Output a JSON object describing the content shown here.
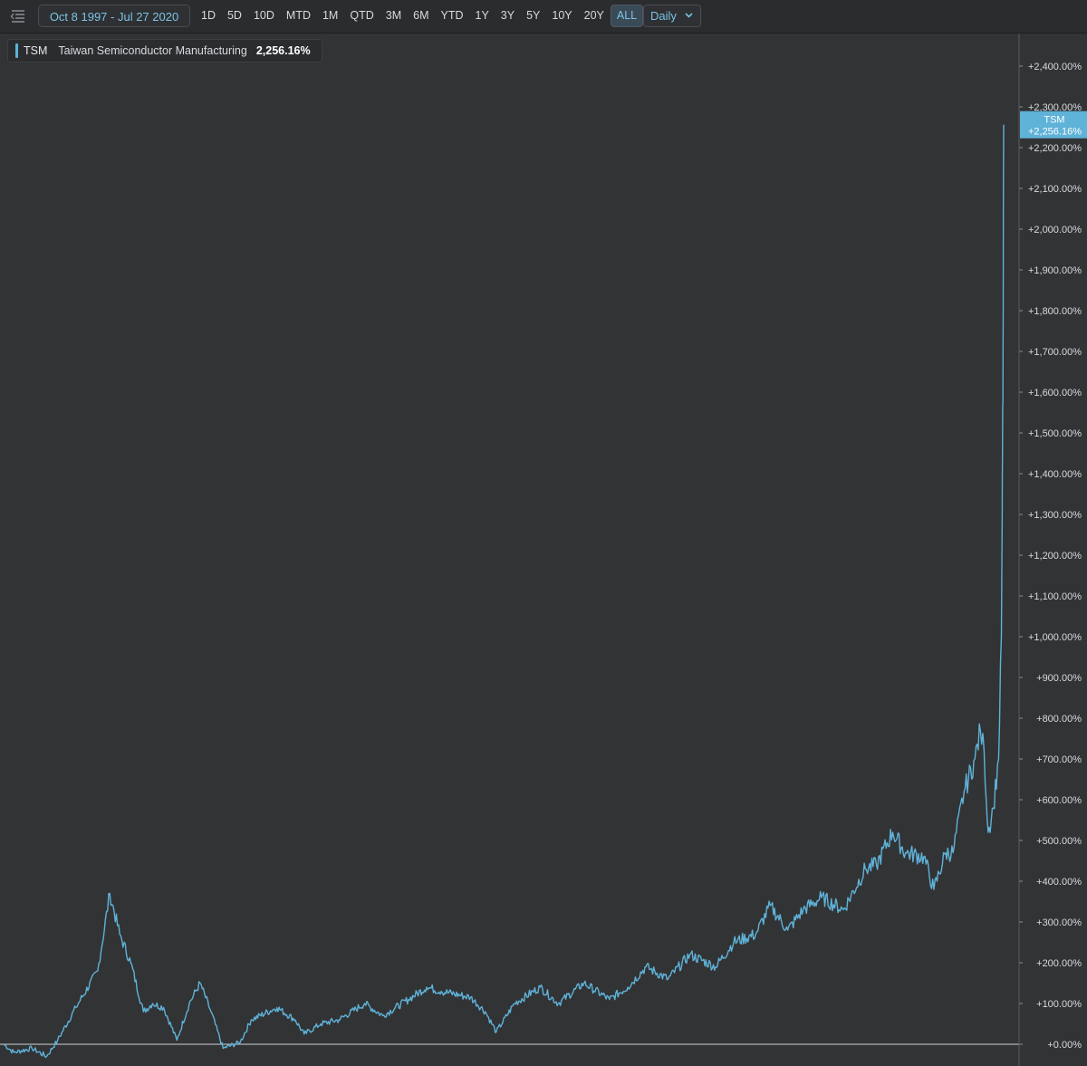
{
  "toolbar": {
    "date_range": "Oct 8 1997 - Jul 27 2020",
    "ranges": [
      "1D",
      "5D",
      "10D",
      "MTD",
      "1M",
      "QTD",
      "3M",
      "6M",
      "YTD",
      "1Y",
      "3Y",
      "5Y",
      "10Y",
      "20Y",
      "ALL"
    ],
    "active_range": "ALL",
    "interval": "Daily"
  },
  "legend": {
    "symbol": "TSM",
    "name": "Taiwan Semiconductor Manufacturing",
    "value": "2,256.16%"
  },
  "colors": {
    "line": "#5fb2d8",
    "background": "#323335",
    "tag": "#5fb2d8"
  },
  "chart_data": {
    "type": "line",
    "x_start": "1997-10-08",
    "x_end": "2020-07-27",
    "ylim": [
      0,
      2480
    ],
    "y_ticks": [
      0,
      100,
      200,
      300,
      400,
      500,
      600,
      700,
      800,
      900,
      1000,
      1100,
      1200,
      1300,
      1400,
      1500,
      1600,
      1700,
      1800,
      1900,
      2000,
      2100,
      2200,
      2300,
      2400
    ],
    "y_tick_labels": [
      "+0.00%",
      "+100.00%",
      "+200.00%",
      "+300.00%",
      "+400.00%",
      "+500.00%",
      "+600.00%",
      "+700.00%",
      "+800.00%",
      "+900.00%",
      "+1,000.00%",
      "+1,100.00%",
      "+1,200.00%",
      "+1,300.00%",
      "+1,400.00%",
      "+1,500.00%",
      "+1,600.00%",
      "+1,700.00%",
      "+1,800.00%",
      "+1,900.00%",
      "+2,000.00%",
      "+2,100.00%",
      "+2,200.00%",
      "+2,300.00%",
      "+2,400.00%"
    ],
    "series": [
      {
        "name": "TSM",
        "last_value": 2256.16,
        "last_label": "+2,256.16%",
        "points": [
          [
            "1997-10-08",
            0
          ],
          [
            "1998-01-01",
            -20
          ],
          [
            "1998-06-01",
            -10
          ],
          [
            "1998-10-01",
            -30
          ],
          [
            "1999-01-01",
            10
          ],
          [
            "1999-06-01",
            90
          ],
          [
            "1999-12-01",
            180
          ],
          [
            "2000-03-10",
            370
          ],
          [
            "2000-06-01",
            270
          ],
          [
            "2000-09-01",
            200
          ],
          [
            "2000-12-15",
            80
          ],
          [
            "2001-03-01",
            100
          ],
          [
            "2001-06-01",
            90
          ],
          [
            "2001-09-20",
            10
          ],
          [
            "2002-01-01",
            100
          ],
          [
            "2002-04-01",
            150
          ],
          [
            "2002-07-01",
            80
          ],
          [
            "2002-10-10",
            -10
          ],
          [
            "2003-03-01",
            5
          ],
          [
            "2003-06-01",
            60
          ],
          [
            "2004-01-01",
            90
          ],
          [
            "2004-06-01",
            60
          ],
          [
            "2004-08-15",
            25
          ],
          [
            "2005-01-01",
            50
          ],
          [
            "2005-06-01",
            60
          ],
          [
            "2006-01-01",
            100
          ],
          [
            "2006-06-01",
            70
          ],
          [
            "2007-01-01",
            110
          ],
          [
            "2007-06-01",
            140
          ],
          [
            "2007-10-01",
            130
          ],
          [
            "2008-06-01",
            115
          ],
          [
            "2008-10-01",
            80
          ],
          [
            "2009-01-01",
            30
          ],
          [
            "2009-06-01",
            100
          ],
          [
            "2010-01-01",
            140
          ],
          [
            "2010-06-01",
            100
          ],
          [
            "2011-01-01",
            150
          ],
          [
            "2011-08-01",
            110
          ],
          [
            "2012-01-01",
            140
          ],
          [
            "2012-06-01",
            190
          ],
          [
            "2012-12-01",
            160
          ],
          [
            "2013-06-01",
            220
          ],
          [
            "2014-01-01",
            190
          ],
          [
            "2014-06-01",
            250
          ],
          [
            "2014-12-01",
            270
          ],
          [
            "2015-04-01",
            340
          ],
          [
            "2015-08-25",
            280
          ],
          [
            "2016-01-01",
            330
          ],
          [
            "2016-06-01",
            360
          ],
          [
            "2016-12-01",
            330
          ],
          [
            "2017-06-01",
            430
          ],
          [
            "2017-09-01",
            440
          ],
          [
            "2018-01-15",
            520
          ],
          [
            "2018-05-01",
            470
          ],
          [
            "2018-10-01",
            460
          ],
          [
            "2018-12-24",
            380
          ],
          [
            "2019-04-01",
            470
          ],
          [
            "2019-06-01",
            470
          ],
          [
            "2019-09-01",
            620
          ],
          [
            "2019-12-01",
            700
          ],
          [
            "2020-01-15",
            770
          ],
          [
            "2020-02-15",
            720
          ],
          [
            "2020-03-20",
            520
          ],
          [
            "2020-05-01",
            580
          ],
          [
            "2020-06-15",
            700
          ],
          [
            "2020-07-08",
            1000
          ],
          [
            "2020-07-15",
            1300
          ],
          [
            "2020-07-17",
            1440
          ],
          [
            "2020-07-21",
            1580
          ],
          [
            "2020-07-23",
            1800
          ],
          [
            "2020-07-27",
            2256.16
          ]
        ]
      }
    ]
  }
}
